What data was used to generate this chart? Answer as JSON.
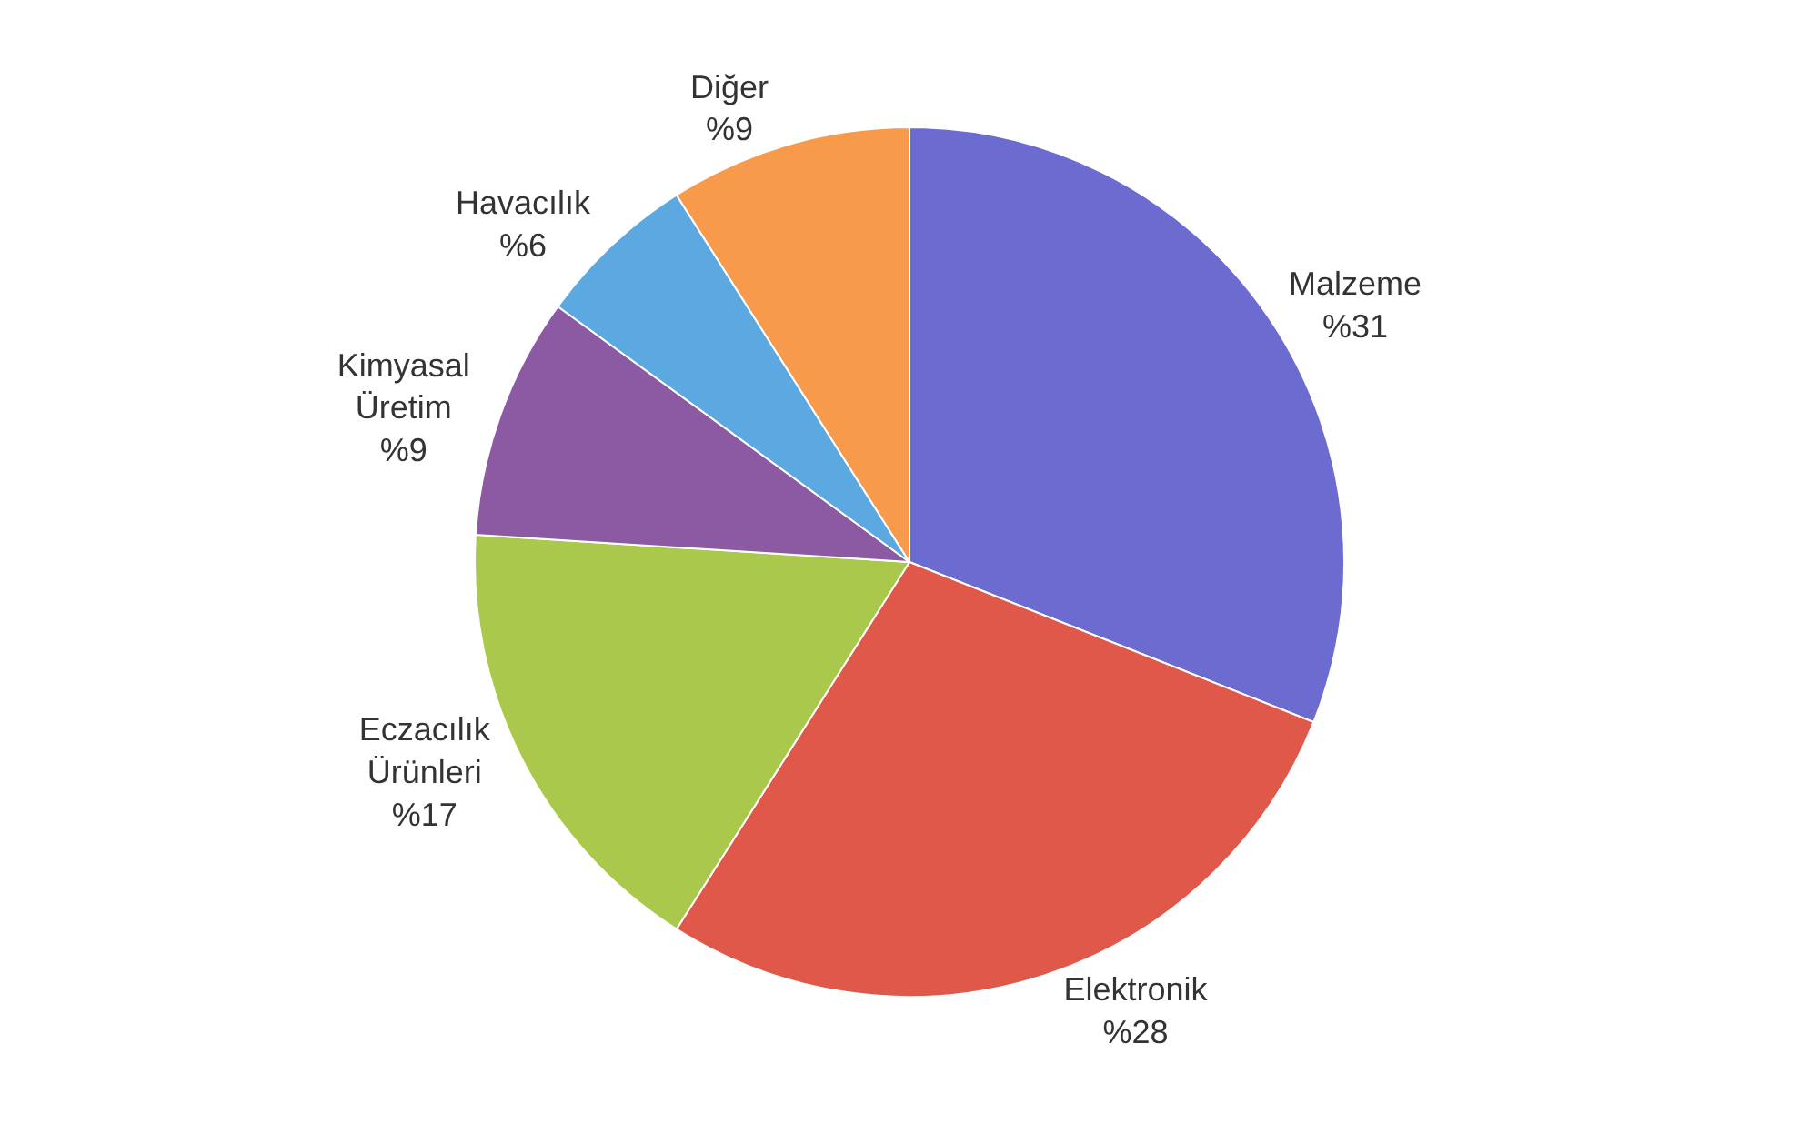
{
  "chart_data": {
    "type": "pie",
    "categories": [
      "Malzeme",
      "Elektronik",
      "Eczacılık Ürünleri",
      "Kimyasal Üretim",
      "Havacılık",
      "Diğer"
    ],
    "values": [
      31,
      28,
      17,
      9,
      6,
      9
    ],
    "value_labels": [
      "%31",
      "%28",
      "%17",
      "%9",
      "%6",
      "%9"
    ],
    "colors": [
      "#6b6bd0",
      "#e0584a",
      "#a9c84c",
      "#8c5aa2",
      "#5ca9e2",
      "#f79a4c"
    ],
    "legend": false
  }
}
